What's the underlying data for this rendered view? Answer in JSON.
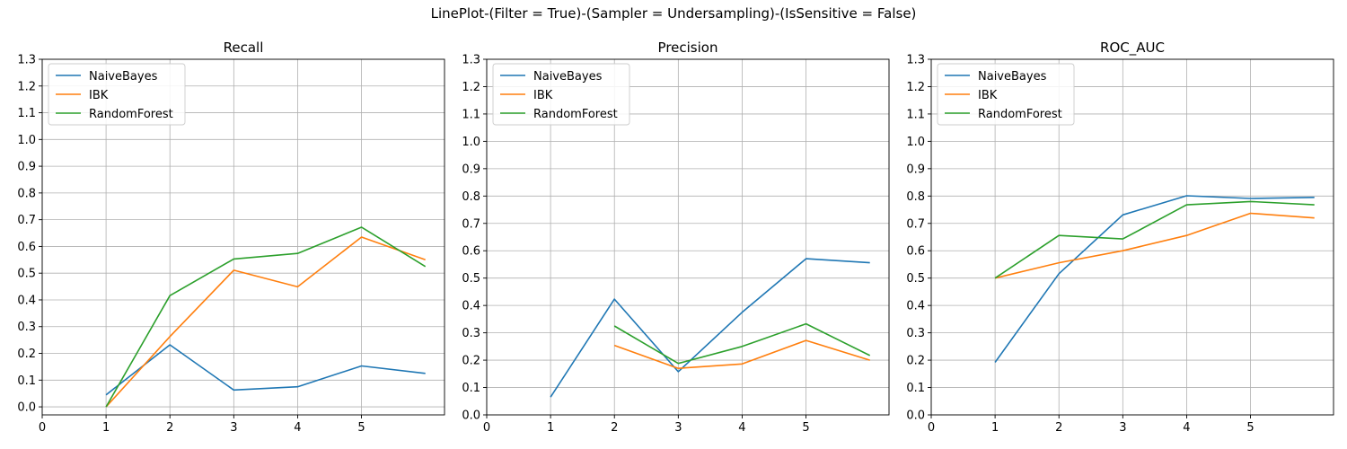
{
  "figure": {
    "suptitle": "LinePlot-(Filter = True)-(Sampler = Undersampling)-(IsSensitive = False)"
  },
  "colors": {
    "NaiveBayes": "#1f77b4",
    "IBK": "#ff7f0e",
    "RandomForest": "#2ca02c",
    "grid": "#b0b0b0"
  },
  "chart_data": [
    {
      "type": "line",
      "title": "Recall",
      "xlabel": "",
      "ylabel": "",
      "xticks": [
        0,
        1,
        2,
        3,
        4,
        5
      ],
      "yticks": [
        0.0,
        0.1,
        0.2,
        0.3,
        0.4,
        0.5,
        0.6,
        0.7,
        0.8,
        0.9,
        1.0,
        1.1,
        1.2,
        1.3
      ],
      "xlim": [
        0,
        6.3
      ],
      "ylim": [
        -0.03,
        1.3
      ],
      "grid": true,
      "legend": "top-left",
      "series": [
        {
          "name": "NaiveBayes",
          "x": [
            1,
            2,
            3,
            4,
            5,
            6
          ],
          "values": [
            0.045,
            0.232,
            0.063,
            0.075,
            0.153,
            0.125
          ]
        },
        {
          "name": "IBK",
          "x": [
            1,
            2,
            3,
            4,
            5,
            6
          ],
          "values": [
            0.0,
            0.263,
            0.511,
            0.449,
            0.635,
            0.55
          ]
        },
        {
          "name": "RandomForest",
          "x": [
            1,
            2,
            3,
            4,
            5,
            6
          ],
          "values": [
            0.0,
            0.416,
            0.553,
            0.574,
            0.672,
            0.525
          ]
        }
      ]
    },
    {
      "type": "line",
      "title": "Precision",
      "xlabel": "",
      "ylabel": "",
      "xticks": [
        0,
        1,
        2,
        3,
        4,
        5
      ],
      "yticks": [
        0.0,
        0.1,
        0.2,
        0.3,
        0.4,
        0.5,
        0.6,
        0.7,
        0.8,
        0.9,
        1.0,
        1.1,
        1.2,
        1.3
      ],
      "xlim": [
        0,
        6.3
      ],
      "ylim": [
        0.0,
        1.3
      ],
      "grid": true,
      "legend": "top-left",
      "series": [
        {
          "name": "NaiveBayes",
          "x": [
            1,
            2,
            3,
            4,
            5,
            6
          ],
          "values": [
            0.065,
            0.423,
            0.158,
            0.375,
            0.571,
            0.556
          ]
        },
        {
          "name": "IBK",
          "x": [
            2,
            3,
            4,
            5,
            6
          ],
          "values": [
            0.254,
            0.17,
            0.186,
            0.272,
            0.2
          ]
        },
        {
          "name": "RandomForest",
          "x": [
            2,
            3,
            4,
            5,
            6
          ],
          "values": [
            0.325,
            0.188,
            0.25,
            0.333,
            0.217
          ]
        }
      ]
    },
    {
      "type": "line",
      "title": "ROC_AUC",
      "xlabel": "",
      "ylabel": "",
      "xticks": [
        0,
        1,
        2,
        3,
        4,
        5
      ],
      "yticks": [
        0.0,
        0.1,
        0.2,
        0.3,
        0.4,
        0.5,
        0.6,
        0.7,
        0.8,
        0.9,
        1.0,
        1.1,
        1.2,
        1.3
      ],
      "xlim": [
        0,
        6.3
      ],
      "ylim": [
        0.0,
        1.3
      ],
      "grid": true,
      "legend": "top-left",
      "series": [
        {
          "name": "NaiveBayes",
          "x": [
            1,
            2,
            3,
            4,
            5,
            6
          ],
          "values": [
            0.192,
            0.516,
            0.731,
            0.801,
            0.791,
            0.795
          ]
        },
        {
          "name": "IBK",
          "x": [
            1,
            2,
            3,
            4,
            5,
            6
          ],
          "values": [
            0.5,
            0.556,
            0.6,
            0.656,
            0.737,
            0.72
          ]
        },
        {
          "name": "RandomForest",
          "x": [
            1,
            2,
            3,
            4,
            5,
            6
          ],
          "values": [
            0.5,
            0.656,
            0.643,
            0.768,
            0.78,
            0.768
          ]
        }
      ]
    }
  ]
}
